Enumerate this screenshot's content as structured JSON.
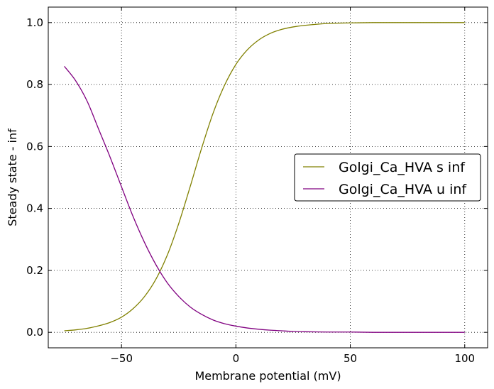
{
  "chart_data": {
    "type": "line",
    "title": "",
    "xlabel": "Membrane potential (mV)",
    "ylabel": "Steady state - inf",
    "xlim": [
      -82,
      110
    ],
    "ylim": [
      -0.05,
      1.05
    ],
    "x_ticks": [
      -50,
      0,
      50,
      100
    ],
    "y_ticks": [
      0.0,
      0.2,
      0.4,
      0.6,
      0.8,
      1.0
    ],
    "x_tick_labels": [
      "−50",
      "0",
      "50",
      "100"
    ],
    "y_tick_labels": [
      "0.0",
      "0.2",
      "0.4",
      "0.6",
      "0.8",
      "1.0"
    ],
    "grid": true,
    "legend_position": "center-right",
    "x": [
      -75,
      -70,
      -65,
      -60,
      -55,
      -50,
      -45,
      -40,
      -35,
      -30,
      -25,
      -20,
      -15,
      -10,
      -5,
      0,
      5,
      10,
      15,
      20,
      25,
      30,
      40,
      50,
      60,
      70,
      80,
      90,
      100
    ],
    "series": [
      {
        "name": "Golgi_Ca_HVA s inf",
        "color": "#808000",
        "values": [
          0.005,
          0.008,
          0.013,
          0.021,
          0.032,
          0.049,
          0.076,
          0.115,
          0.171,
          0.249,
          0.351,
          0.47,
          0.594,
          0.707,
          0.797,
          0.865,
          0.912,
          0.944,
          0.965,
          0.978,
          0.986,
          0.991,
          0.997,
          0.999,
          1.0,
          1.0,
          1.0,
          1.0,
          1.0
        ]
      },
      {
        "name": "Golgi_Ca_HVA u inf",
        "color": "#800080",
        "values": [
          0.859,
          0.812,
          0.746,
          0.656,
          0.566,
          0.47,
          0.375,
          0.291,
          0.219,
          0.16,
          0.116,
          0.082,
          0.058,
          0.04,
          0.028,
          0.02,
          0.014,
          0.01,
          0.007,
          0.005,
          0.003,
          0.002,
          0.001,
          0.001,
          0.0,
          0.0,
          0.0,
          0.0,
          0.0
        ]
      }
    ]
  }
}
